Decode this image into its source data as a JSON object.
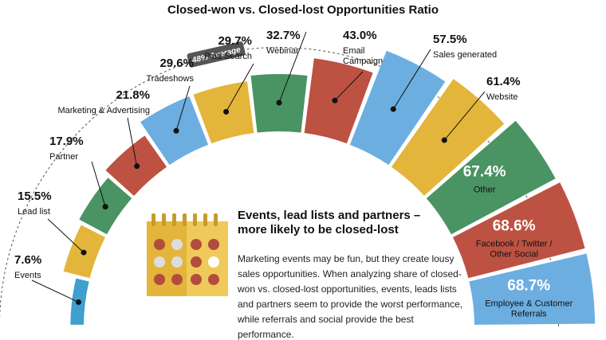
{
  "chart_data": {
    "type": "radial-bar",
    "title": "Closed-won vs. Closed-lost Opportunities Ratio",
    "categories": [
      "Events",
      "Lead list",
      "Partner",
      "Marketing & Advertising",
      "Tradeshows",
      "Paid Search",
      "Webinar",
      "Email Campaign",
      "Sales generated",
      "Website",
      "Other",
      "Facebook / Twitter / Other Social",
      "Employee & Customer Referrals"
    ],
    "values": [
      7.6,
      15.5,
      17.9,
      21.8,
      29.6,
      29.7,
      32.7,
      43.0,
      57.5,
      61.4,
      67.4,
      68.6,
      68.7
    ],
    "value_labels": [
      "7.6%",
      "15.5%",
      "17.9%",
      "21.8%",
      "29.6%",
      "29.7%",
      "32.7%",
      "43.0%",
      "57.5%",
      "61.4%",
      "67.4%",
      "68.6%",
      "68.7%"
    ],
    "colors": [
      "#3f9fcf",
      "#e3b53a",
      "#4a9363",
      "#bd5243",
      "#6caee0",
      "#e3b53a",
      "#4a9363",
      "#bd5243",
      "#6caee0",
      "#e3b53a",
      "#4a9363",
      "#bd5243",
      "#6caee0"
    ],
    "average": {
      "value": 48,
      "label": "48% Average"
    },
    "callout": {
      "heading": "Events, lead lists and partners – more likely to be closed-lost",
      "body": "Marketing events may be fun, but they create lousy sales opportunities. When analyzing share of closed-won vs. closed-lost opportunities, events, leads lists and partners seem to provide the worst performance, while referrals and social provide the best performance."
    }
  }
}
